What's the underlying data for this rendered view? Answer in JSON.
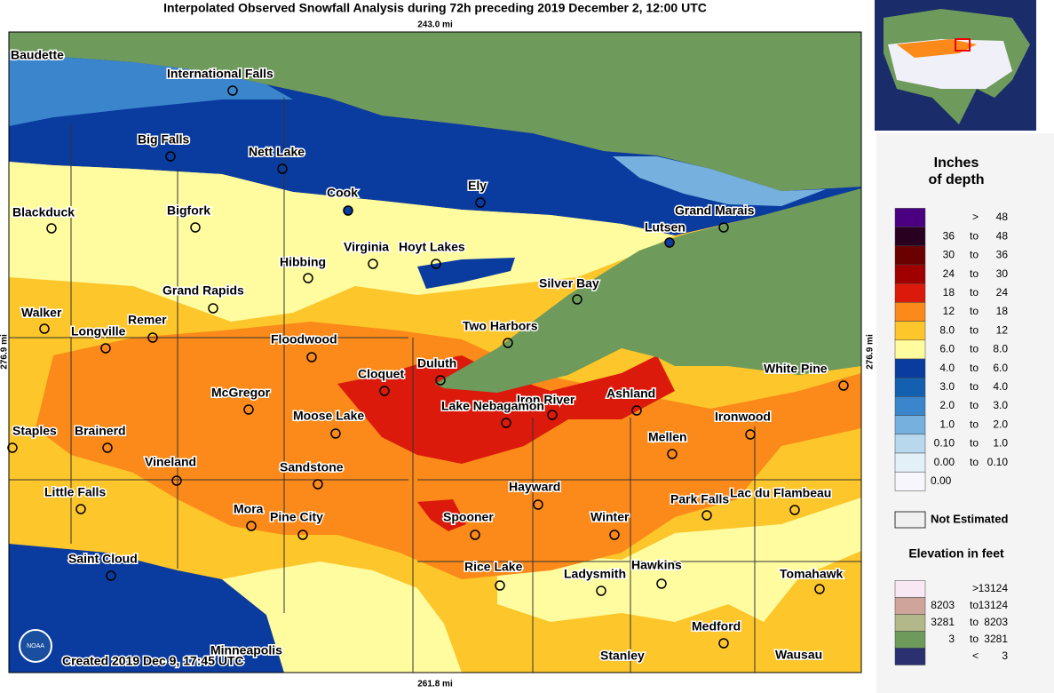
{
  "map": {
    "title": "Interpolated Observed Snowfall Analysis during 72h preceding 2019 December 2, 12:00 UTC",
    "scale_top": "243.0 mi",
    "scale_bottom": "261.8 mi",
    "scale_left": "276.9 mi",
    "scale_right": "276.9 mi",
    "credit": "Created 2019 Dec 9, 17:45 UTC",
    "logo": "NOAA",
    "cities": [
      "Baudette",
      "International Falls",
      "Big Falls",
      "Nett Lake",
      "Cook",
      "Ely",
      "Blackduck",
      "Bigfork",
      "Grand Marais",
      "Lutsen",
      "Virginia",
      "Hoyt Lakes",
      "Hibbing",
      "Silver Bay",
      "Grand Rapids",
      "Walker",
      "Remer",
      "Longville",
      "Two Harbors",
      "Floodwood",
      "Duluth",
      "Cloquet",
      "White Pine",
      "McGregor",
      "Ashland",
      "Iron River",
      "Lake Nebagamon",
      "Moose Lake",
      "Ironwood",
      "Staples",
      "Brainerd",
      "Mellen",
      "Vineland",
      "Sandstone",
      "Hayward",
      "Little Falls",
      "Park Falls",
      "Lac du Flambeau",
      "Mora",
      "Pine City",
      "Spooner",
      "Winter",
      "Saint Cloud",
      "Rice Lake",
      "Ladysmith",
      "Hawkins",
      "Tomahawk",
      "Medford",
      "Minneapolis",
      "Stanley",
      "Wausau"
    ]
  },
  "legend": {
    "title": [
      "Inches",
      "of depth"
    ],
    "rows": [
      {
        "parts": [
          ">",
          "48"
        ],
        "color": "#4b0082"
      },
      {
        "parts": [
          "36",
          "to",
          "48"
        ],
        "color": "#2a0020"
      },
      {
        "parts": [
          "30",
          "to",
          "36"
        ],
        "color": "#6a0000"
      },
      {
        "parts": [
          "24",
          "to",
          "30"
        ],
        "color": "#a00000"
      },
      {
        "parts": [
          "18",
          "to",
          "24"
        ],
        "color": "#db1a0c"
      },
      {
        "parts": [
          "12",
          "to",
          "18"
        ],
        "color": "#fb8a1a"
      },
      {
        "parts": [
          "8.0",
          "to",
          "12"
        ],
        "color": "#fdc62a"
      },
      {
        "parts": [
          "6.0",
          "to",
          "8.0"
        ],
        "color": "#fffca0"
      },
      {
        "parts": [
          "4.0",
          "to",
          "6.0"
        ],
        "color": "#0a3ca0"
      },
      {
        "parts": [
          "3.0",
          "to",
          "4.0"
        ],
        "color": "#1460b0"
      },
      {
        "parts": [
          "2.0",
          "to",
          "3.0"
        ],
        "color": "#3a85cc"
      },
      {
        "parts": [
          "1.0",
          "to",
          "2.0"
        ],
        "color": "#75b0de"
      },
      {
        "parts": [
          "0.10",
          "to",
          "1.0"
        ],
        "color": "#b8d8ee"
      },
      {
        "parts": [
          "0.00",
          "to",
          "0.10"
        ],
        "color": "#e4f0f8"
      },
      {
        "parts": [
          "0.00"
        ],
        "color": "#f6f6fc"
      }
    ],
    "not_estimated": "Not Estimated",
    "elevation_title": "Elevation in feet",
    "elevation_rows": [
      {
        "parts": [
          ">",
          "13124"
        ],
        "color": "#f8e8f4"
      },
      {
        "parts": [
          "8203",
          "to",
          "13124"
        ],
        "color": "#cfa49a"
      },
      {
        "parts": [
          "3281",
          "to",
          "8203"
        ],
        "color": "#b3b88a"
      },
      {
        "parts": [
          "3",
          "to",
          "3281"
        ],
        "color": "#6e9a5c"
      },
      {
        "parts": [
          "<",
          "3"
        ],
        "color": "#2a3070"
      }
    ]
  }
}
